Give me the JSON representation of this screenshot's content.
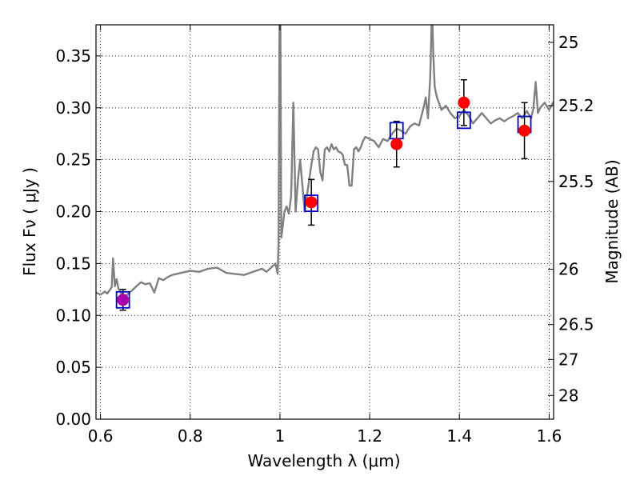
{
  "chart_data": {
    "type": "line",
    "xlabel": "Wavelength  λ (μm)",
    "ylabel": "Flux  Fν  ( μJy )",
    "ylabel2": "Magnitude (AB)",
    "xlim": [
      0.59,
      1.61
    ],
    "ylim": [
      0.0,
      0.38
    ],
    "grid": true,
    "x_ticks": [
      0.6,
      0.8,
      1.0,
      1.2,
      1.4,
      1.6
    ],
    "x_tick_labels": [
      "0.6",
      "0.8",
      "1",
      "1.2",
      "1.4",
      "1.6"
    ],
    "y_ticks": [
      0.0,
      0.05,
      0.1,
      0.15,
      0.2,
      0.25,
      0.3,
      0.35
    ],
    "y_tick_labels": [
      "0.00",
      "0.05",
      "0.10",
      "0.15",
      "0.20",
      "0.25",
      "0.30",
      "0.35"
    ],
    "mag_ticks": [
      {
        "mag": 25,
        "label": "25"
      },
      {
        "mag": 25.2,
        "label": "25.2"
      },
      {
        "mag": 25.5,
        "label": "25.5"
      },
      {
        "mag": 26,
        "label": "26"
      },
      {
        "mag": 26.5,
        "label": "26.5"
      },
      {
        "mag": 27,
        "label": "27"
      },
      {
        "mag": 28,
        "label": "28"
      }
    ],
    "series": [
      {
        "kind": "spectrum",
        "color": "#808080",
        "x": [
          0.59,
          0.6,
          0.61,
          0.615,
          0.62,
          0.625,
          0.628,
          0.632,
          0.636,
          0.64,
          0.645,
          0.65,
          0.66,
          0.67,
          0.68,
          0.69,
          0.7,
          0.71,
          0.72,
          0.73,
          0.74,
          0.75,
          0.76,
          0.78,
          0.8,
          0.82,
          0.84,
          0.86,
          0.88,
          0.9,
          0.92,
          0.94,
          0.96,
          0.97,
          0.98,
          0.99,
          0.995,
          0.997,
          0.999,
          1.001,
          1.003,
          1.006,
          1.01,
          1.015,
          1.02,
          1.025,
          1.03,
          1.035,
          1.04,
          1.045,
          1.05,
          1.055,
          1.06,
          1.065,
          1.07,
          1.075,
          1.08,
          1.085,
          1.09,
          1.095,
          1.1,
          1.105,
          1.11,
          1.115,
          1.12,
          1.125,
          1.13,
          1.135,
          1.14,
          1.145,
          1.15,
          1.155,
          1.16,
          1.165,
          1.17,
          1.175,
          1.18,
          1.185,
          1.19,
          1.2,
          1.21,
          1.22,
          1.23,
          1.24,
          1.25,
          1.26,
          1.27,
          1.28,
          1.29,
          1.3,
          1.31,
          1.32,
          1.325,
          1.33,
          1.335,
          1.338,
          1.34,
          1.342,
          1.345,
          1.35,
          1.36,
          1.37,
          1.38,
          1.39,
          1.4,
          1.41,
          1.42,
          1.43,
          1.44,
          1.45,
          1.46,
          1.47,
          1.48,
          1.49,
          1.5,
          1.51,
          1.52,
          1.53,
          1.54,
          1.55,
          1.56,
          1.565,
          1.57,
          1.575,
          1.58,
          1.59,
          1.6,
          1.61
        ],
        "y": [
          0.122,
          0.12,
          0.123,
          0.121,
          0.124,
          0.127,
          0.155,
          0.128,
          0.135,
          0.126,
          0.122,
          0.118,
          0.12,
          0.124,
          0.128,
          0.132,
          0.13,
          0.131,
          0.122,
          0.136,
          0.134,
          0.137,
          0.139,
          0.141,
          0.143,
          0.142,
          0.145,
          0.146,
          0.141,
          0.14,
          0.139,
          0.142,
          0.145,
          0.142,
          0.146,
          0.15,
          0.14,
          0.17,
          0.38,
          0.38,
          0.175,
          0.185,
          0.2,
          0.205,
          0.198,
          0.215,
          0.305,
          0.2,
          0.23,
          0.25,
          0.225,
          0.2,
          0.215,
          0.23,
          0.245,
          0.258,
          0.262,
          0.26,
          0.238,
          0.23,
          0.26,
          0.262,
          0.258,
          0.265,
          0.26,
          0.262,
          0.258,
          0.257,
          0.255,
          0.245,
          0.245,
          0.225,
          0.225,
          0.26,
          0.262,
          0.258,
          0.262,
          0.268,
          0.272,
          0.27,
          0.268,
          0.262,
          0.27,
          0.268,
          0.275,
          0.28,
          0.278,
          0.275,
          0.282,
          0.285,
          0.283,
          0.3,
          0.31,
          0.29,
          0.33,
          0.38,
          0.38,
          0.35,
          0.32,
          0.31,
          0.298,
          0.302,
          0.295,
          0.29,
          0.292,
          0.298,
          0.293,
          0.285,
          0.29,
          0.295,
          0.29,
          0.285,
          0.288,
          0.29,
          0.287,
          0.29,
          0.292,
          0.295,
          0.29,
          0.297,
          0.29,
          0.3,
          0.325,
          0.295,
          0.3,
          0.305,
          0.298,
          0.306
        ]
      },
      {
        "kind": "model_photometry",
        "marker": "square",
        "color": "#0000cc",
        "x": [
          0.65,
          1.07,
          1.26,
          1.41,
          1.545
        ],
        "y": [
          0.115,
          0.208,
          0.278,
          0.288,
          0.284
        ]
      },
      {
        "kind": "observed_photometry",
        "marker": "circle",
        "color": "#ff0000",
        "x": [
          0.65,
          1.07,
          1.26,
          1.41,
          1.545
        ],
        "y": [
          0.115,
          0.209,
          0.265,
          0.305,
          0.278
        ],
        "yerr": [
          0.01,
          0.022,
          0.022,
          0.022,
          0.027
        ],
        "point_colors": [
          "#aa00aa",
          "#ff0000",
          "#ff0000",
          "#ff0000",
          "#ff0000"
        ]
      }
    ]
  }
}
